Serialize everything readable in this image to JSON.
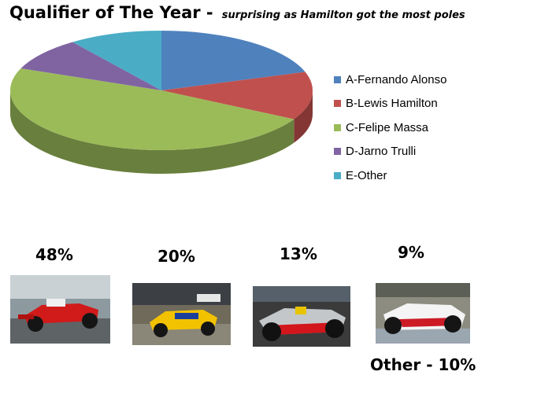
{
  "chart_data": {
    "type": "pie",
    "title": "Qualifier of The Year -",
    "subtitle": "surprising as Hamilton got the most poles",
    "legend_position": "right",
    "slices": [
      {
        "label": "A-Fernando Alonso",
        "value": 20,
        "color": "#4f81bd"
      },
      {
        "label": "B-Lewis Hamilton",
        "value": 13,
        "color": "#c0504d"
      },
      {
        "label": "C-Felipe Massa",
        "value": 48,
        "color": "#9bbb59"
      },
      {
        "label": "D-Jarno Trulli",
        "value": 9,
        "color": "#8064a2"
      },
      {
        "label": "E-Other",
        "value": 10,
        "color": "#4bacc6"
      }
    ]
  },
  "photos": [
    {
      "label": "48%",
      "icon": "red-ferrari-f1-car-icon"
    },
    {
      "label": "20%",
      "icon": "yellow-blue-renault-f1-car-icon"
    },
    {
      "label": "13%",
      "icon": "silver-red-mclaren-f1-car-icon"
    },
    {
      "label": "9%",
      "icon": "white-red-toyota-f1-car-icon"
    }
  ],
  "other_label": "Other - 10%"
}
